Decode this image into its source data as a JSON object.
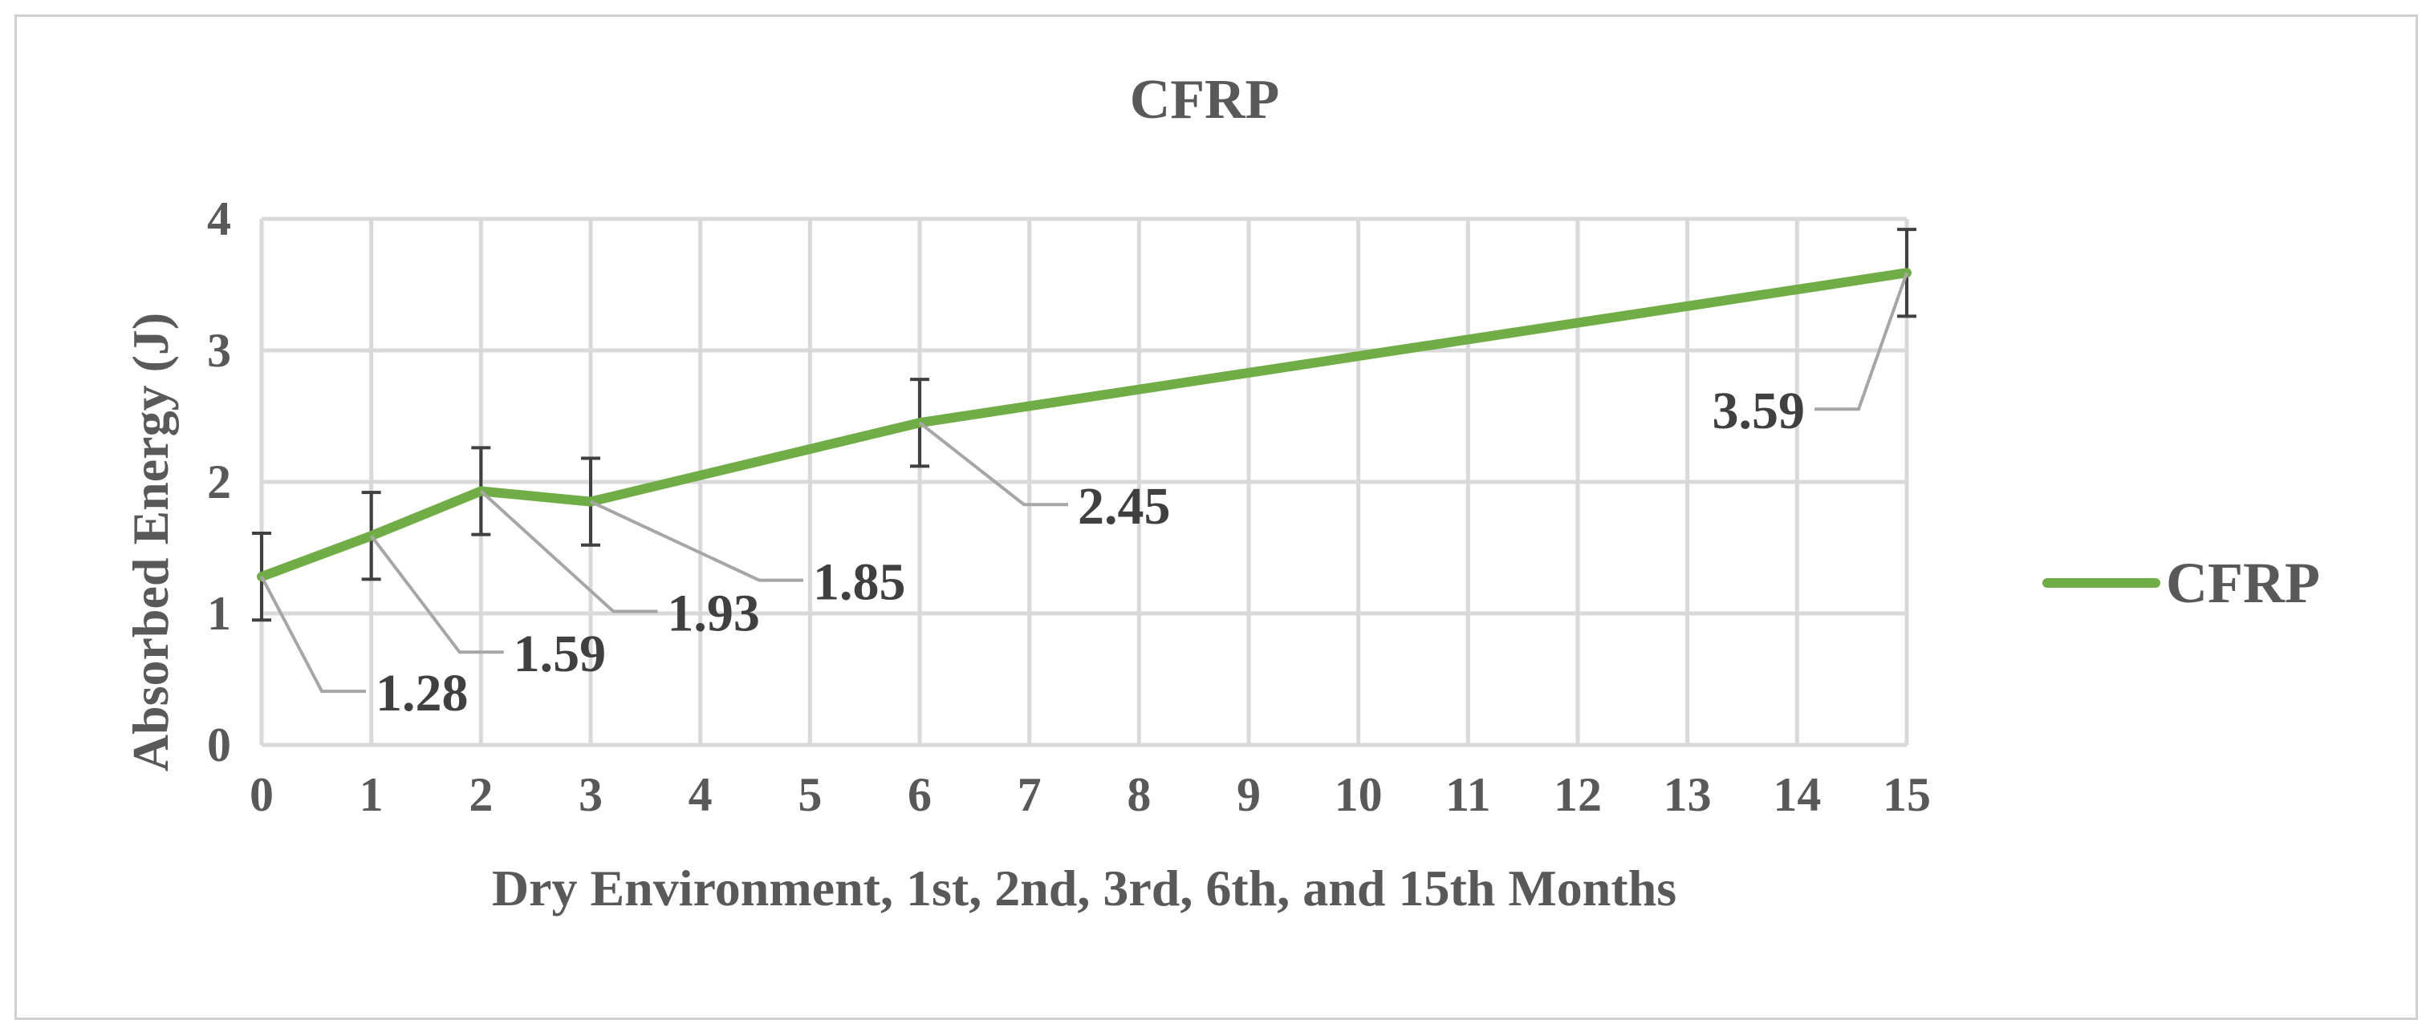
{
  "chart_data": {
    "type": "line",
    "title": "CFRP",
    "xlabel": "Dry Environment, 1st, 2nd, 3rd, 6th, and 15th Months",
    "ylabel": "Absorbed Energy (J)",
    "xlim": [
      0,
      15
    ],
    "ylim": [
      0,
      4
    ],
    "x_ticks": [
      "0",
      "1",
      "2",
      "3",
      "4",
      "5",
      "6",
      "7",
      "8",
      "9",
      "10",
      "11",
      "12",
      "13",
      "14",
      "15"
    ],
    "y_ticks": [
      "0",
      "1",
      "2",
      "3",
      "4"
    ],
    "grid": true,
    "legend_position": "right",
    "series": [
      {
        "name": "CFRP",
        "color": "#70ad47",
        "x": [
          0,
          1,
          2,
          3,
          6,
          15
        ],
        "y": [
          1.28,
          1.59,
          1.93,
          1.85,
          2.45,
          3.59
        ],
        "error": [
          0.33,
          0.33,
          0.33,
          0.33,
          0.33,
          0.33
        ],
        "labels": [
          "1.28",
          "1.59",
          "1.93",
          "1.85",
          "2.45",
          "3.59"
        ]
      }
    ]
  }
}
